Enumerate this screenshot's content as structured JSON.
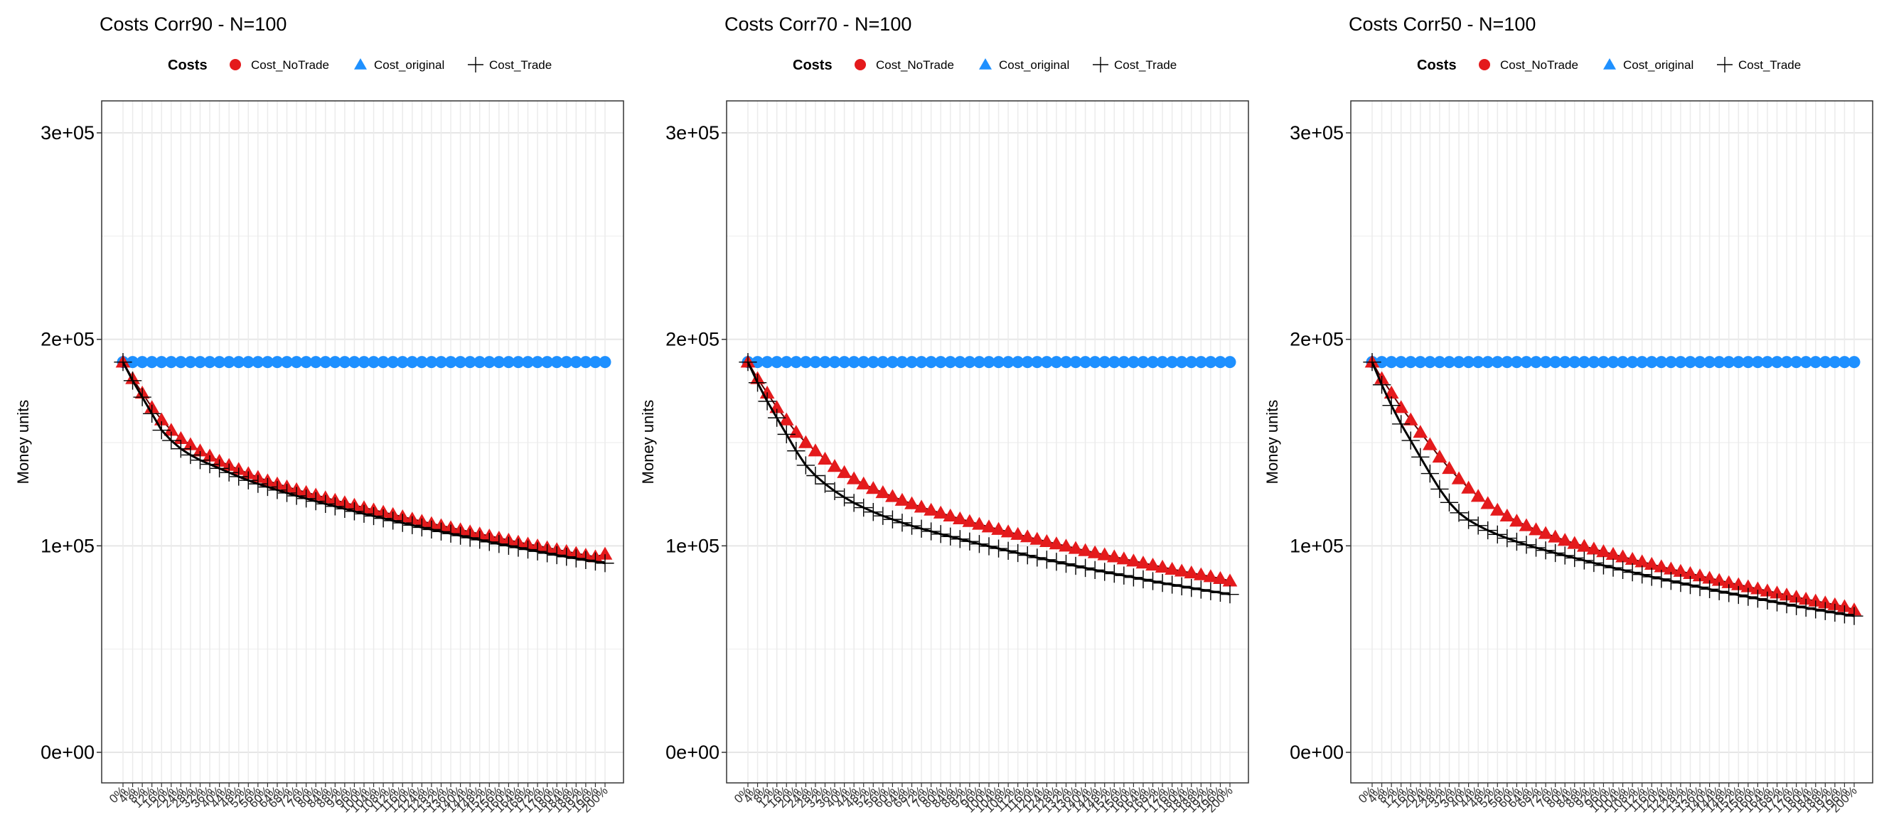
{
  "figure_label": "Costs comparison panels",
  "colors": {
    "Cost_NoTrade": "#e41a1c",
    "Cost_original": "#1e90ff",
    "Cost_Trade": "#000000"
  },
  "chart_data": [
    {
      "type": "scatter",
      "title": "Costs Corr90 - N=100",
      "xlabel": "",
      "ylabel": "Money units",
      "legend_title": "Costs",
      "legend_position": "top",
      "legend": [
        "Cost_NoTrade",
        "Cost_original",
        "Cost_Trade"
      ],
      "ylim": [
        0,
        300000
      ],
      "y_ticks": [
        "0e+00",
        "1e+05",
        "2e+05",
        "3e+05"
      ],
      "y_tick_values": [
        0,
        100000,
        200000,
        300000
      ],
      "grid": true,
      "x": [
        "0%",
        "4%",
        "8%",
        "12%",
        "16%",
        "20%",
        "24%",
        "28%",
        "32%",
        "36%",
        "40%",
        "44%",
        "48%",
        "52%",
        "56%",
        "60%",
        "64%",
        "68%",
        "72%",
        "76%",
        "80%",
        "84%",
        "88%",
        "92%",
        "96%",
        "100%",
        "104%",
        "108%",
        "112%",
        "116%",
        "120%",
        "124%",
        "128%",
        "132%",
        "136%",
        "140%",
        "144%",
        "148%",
        "152%",
        "156%",
        "160%",
        "164%",
        "168%",
        "172%",
        "176%",
        "180%",
        "184%",
        "188%",
        "192%",
        "196%",
        "200%"
      ],
      "series": [
        {
          "name": "Cost_original",
          "marker": "circle",
          "values": [
            189000,
            189000,
            189000,
            189000,
            189000,
            189000,
            189000,
            189000,
            189000,
            189000,
            189000,
            189000,
            189000,
            189000,
            189000,
            189000,
            189000,
            189000,
            189000,
            189000,
            189000,
            189000,
            189000,
            189000,
            189000,
            189000,
            189000,
            189000,
            189000,
            189000,
            189000,
            189000,
            189000,
            189000,
            189000,
            189000,
            189000,
            189000,
            189000,
            189000,
            189000,
            189000,
            189000,
            189000,
            189000,
            189000,
            189000,
            189000,
            189000,
            189000,
            189000
          ]
        },
        {
          "name": "Cost_NoTrade",
          "marker": "triangle",
          "values": [
            189000,
            181000,
            174000,
            167000,
            161000,
            156000,
            152000,
            149000,
            146000,
            143500,
            141000,
            139000,
            137000,
            135000,
            133200,
            131500,
            130000,
            128600,
            127200,
            125900,
            124600,
            123300,
            122100,
            120900,
            119700,
            118500,
            117400,
            116300,
            115200,
            114100,
            113000,
            111900,
            110800,
            109800,
            108800,
            107800,
            106800,
            105800,
            104800,
            103800,
            102800,
            101800,
            100900,
            100000,
            99100,
            98200,
            97300,
            96400,
            95500,
            94700,
            96000
          ]
        },
        {
          "name": "Cost_Trade",
          "marker": "plus",
          "values": [
            189000,
            180000,
            172000,
            164000,
            156000,
            151000,
            147000,
            144000,
            141500,
            139500,
            137500,
            135500,
            133500,
            131700,
            130000,
            128500,
            127000,
            125600,
            124200,
            122900,
            121600,
            120300,
            119100,
            117900,
            116700,
            115500,
            114400,
            113300,
            112200,
            111100,
            110000,
            108900,
            107900,
            106900,
            105900,
            104900,
            103900,
            102900,
            101900,
            100900,
            100000,
            99100,
            98200,
            97300,
            96400,
            95500,
            94700,
            93900,
            93100,
            92400,
            91600
          ]
        }
      ]
    },
    {
      "type": "scatter",
      "title": "Costs Corr70 - N=100",
      "xlabel": "",
      "ylabel": "Money units",
      "legend_title": "Costs",
      "legend_position": "top",
      "legend": [
        "Cost_NoTrade",
        "Cost_original",
        "Cost_Trade"
      ],
      "ylim": [
        0,
        300000
      ],
      "y_ticks": [
        "0e+00",
        "1e+05",
        "2e+05",
        "3e+05"
      ],
      "y_tick_values": [
        0,
        100000,
        200000,
        300000
      ],
      "grid": true,
      "x": [
        "0%",
        "4%",
        "8%",
        "12%",
        "16%",
        "20%",
        "24%",
        "28%",
        "32%",
        "36%",
        "40%",
        "44%",
        "48%",
        "52%",
        "56%",
        "60%",
        "64%",
        "68%",
        "72%",
        "76%",
        "80%",
        "84%",
        "88%",
        "92%",
        "96%",
        "100%",
        "104%",
        "108%",
        "112%",
        "116%",
        "120%",
        "124%",
        "128%",
        "132%",
        "136%",
        "140%",
        "144%",
        "148%",
        "152%",
        "156%",
        "160%",
        "164%",
        "168%",
        "172%",
        "176%",
        "180%",
        "184%",
        "188%",
        "192%",
        "196%",
        "200%"
      ],
      "series": [
        {
          "name": "Cost_original",
          "marker": "circle",
          "values": [
            189000,
            189000,
            189000,
            189000,
            189000,
            189000,
            189000,
            189000,
            189000,
            189000,
            189000,
            189000,
            189000,
            189000,
            189000,
            189000,
            189000,
            189000,
            189000,
            189000,
            189000,
            189000,
            189000,
            189000,
            189000,
            189000,
            189000,
            189000,
            189000,
            189000,
            189000,
            189000,
            189000,
            189000,
            189000,
            189000,
            189000,
            189000,
            189000,
            189000,
            189000,
            189000,
            189000,
            189000,
            189000,
            189000,
            189000,
            189000,
            189000,
            189000,
            189000
          ]
        },
        {
          "name": "Cost_NoTrade",
          "marker": "triangle",
          "values": [
            189000,
            181000,
            174000,
            167000,
            161000,
            155000,
            150000,
            146000,
            142000,
            138500,
            135500,
            132500,
            130000,
            127800,
            125800,
            123900,
            122100,
            120400,
            118800,
            117300,
            115900,
            114500,
            113100,
            111800,
            110500,
            109200,
            108000,
            106800,
            105600,
            104400,
            103200,
            102100,
            101000,
            99900,
            98800,
            97700,
            96700,
            95700,
            94700,
            93700,
            92700,
            91700,
            90700,
            89700,
            88700,
            87800,
            86900,
            86000,
            85100,
            84200,
            83000
          ]
        },
        {
          "name": "Cost_Trade",
          "marker": "plus",
          "values": [
            189000,
            179000,
            170000,
            162000,
            154000,
            146000,
            139000,
            134000,
            130000,
            126500,
            123500,
            120800,
            118500,
            116400,
            114500,
            112800,
            111200,
            109700,
            108300,
            107000,
            105700,
            104500,
            103300,
            102100,
            100900,
            99800,
            98700,
            97600,
            96500,
            95400,
            94300,
            93300,
            92300,
            91300,
            90300,
            89300,
            88300,
            87400,
            86500,
            85600,
            84700,
            83800,
            82900,
            82000,
            81200,
            80400,
            79600,
            78800,
            78000,
            77300,
            76500
          ]
        }
      ]
    },
    {
      "type": "scatter",
      "title": "Costs Corr50 - N=100",
      "xlabel": "",
      "ylabel": "Money units",
      "legend_title": "Costs",
      "legend_position": "top",
      "legend": [
        "Cost_NoTrade",
        "Cost_original",
        "Cost_Trade"
      ],
      "ylim": [
        0,
        300000
      ],
      "y_ticks": [
        "0e+00",
        "1e+05",
        "2e+05",
        "3e+05"
      ],
      "y_tick_values": [
        0,
        100000,
        200000,
        300000
      ],
      "grid": true,
      "x": [
        "0%",
        "4%",
        "8%",
        "12%",
        "16%",
        "20%",
        "24%",
        "28%",
        "32%",
        "36%",
        "40%",
        "44%",
        "48%",
        "52%",
        "56%",
        "60%",
        "64%",
        "68%",
        "72%",
        "76%",
        "80%",
        "84%",
        "88%",
        "92%",
        "96%",
        "100%",
        "104%",
        "108%",
        "112%",
        "116%",
        "120%",
        "124%",
        "128%",
        "132%",
        "136%",
        "140%",
        "144%",
        "148%",
        "152%",
        "156%",
        "160%",
        "164%",
        "168%",
        "172%",
        "176%",
        "180%",
        "184%",
        "188%",
        "192%",
        "196%",
        "200%"
      ],
      "series": [
        {
          "name": "Cost_original",
          "marker": "circle",
          "values": [
            189000,
            189000,
            189000,
            189000,
            189000,
            189000,
            189000,
            189000,
            189000,
            189000,
            189000,
            189000,
            189000,
            189000,
            189000,
            189000,
            189000,
            189000,
            189000,
            189000,
            189000,
            189000,
            189000,
            189000,
            189000,
            189000,
            189000,
            189000,
            189000,
            189000,
            189000,
            189000,
            189000,
            189000,
            189000,
            189000,
            189000,
            189000,
            189000,
            189000,
            189000,
            189000,
            189000,
            189000,
            189000,
            189000,
            189000,
            189000,
            189000,
            189000,
            189000
          ]
        },
        {
          "name": "Cost_NoTrade",
          "marker": "triangle",
          "values": [
            189000,
            181000,
            174000,
            167000,
            161000,
            155000,
            149000,
            143000,
            137500,
            132500,
            128000,
            124000,
            120500,
            117300,
            114500,
            112000,
            109800,
            107800,
            106000,
            104300,
            102700,
            101200,
            99800,
            98500,
            97200,
            95900,
            94700,
            93500,
            92300,
            91100,
            89900,
            88800,
            87700,
            86600,
            85500,
            84400,
            83300,
            82200,
            81200,
            80200,
            79200,
            78200,
            77200,
            76200,
            75200,
            74200,
            73300,
            72400,
            71500,
            70600,
            69000
          ]
        },
        {
          "name": "Cost_Trade",
          "marker": "plus",
          "values": [
            189000,
            178000,
            168000,
            159000,
            151000,
            143000,
            135000,
            127500,
            121000,
            116000,
            112500,
            109800,
            107500,
            105500,
            103700,
            102000,
            100500,
            99100,
            97800,
            96500,
            95300,
            94100,
            92900,
            91700,
            90500,
            89400,
            88300,
            87200,
            86100,
            85000,
            84000,
            83000,
            82000,
            81000,
            80000,
            79000,
            78000,
            77100,
            76200,
            75300,
            74400,
            73500,
            72600,
            71700,
            70800,
            70000,
            69200,
            68400,
            67600,
            66800,
            66000
          ]
        }
      ]
    }
  ]
}
